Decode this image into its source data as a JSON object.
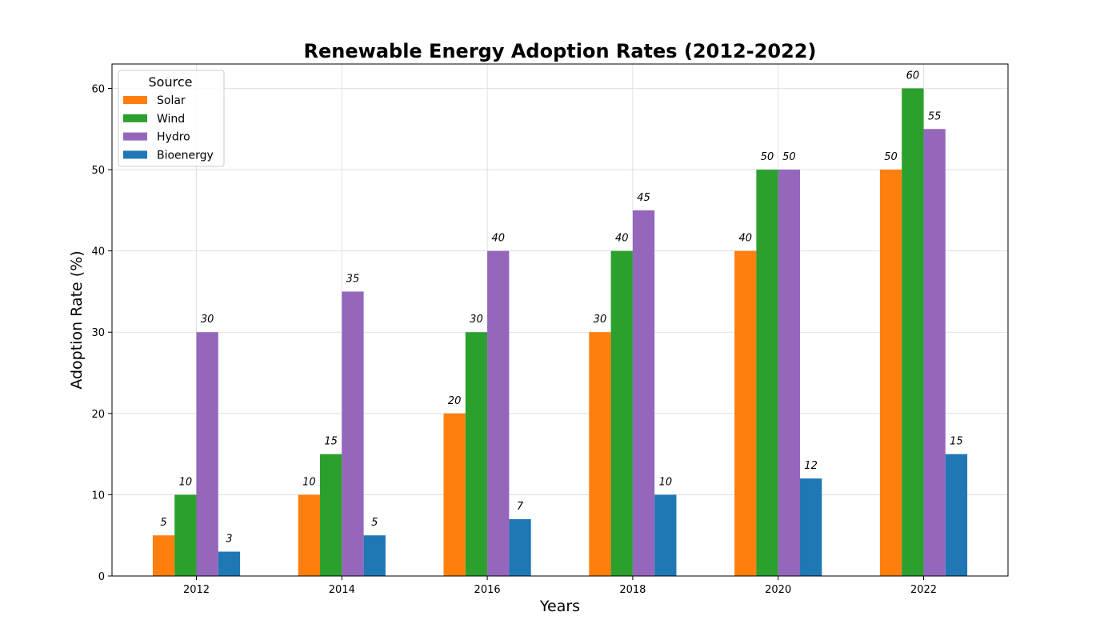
{
  "chart_data": {
    "type": "bar",
    "title": "Renewable Energy Adoption Rates (2012-2022)",
    "xlabel": "Years",
    "ylabel": "Adoption Rate (%)",
    "categories": [
      "2012",
      "2014",
      "2016",
      "2018",
      "2020",
      "2022"
    ],
    "ylim": [
      0,
      63
    ],
    "yticks": [
      0,
      10,
      20,
      30,
      40,
      50,
      60
    ],
    "grid": true,
    "legend": {
      "title": "Source",
      "placement": "top-left"
    },
    "series": [
      {
        "name": "Solar",
        "color": "#ff7f0e",
        "values": [
          5,
          10,
          20,
          30,
          40,
          50
        ]
      },
      {
        "name": "Wind",
        "color": "#2ca02c",
        "values": [
          10,
          15,
          30,
          40,
          50,
          60
        ]
      },
      {
        "name": "Hydro",
        "color": "#9467bd",
        "values": [
          30,
          35,
          40,
          45,
          50,
          55
        ]
      },
      {
        "name": "Bioenergy",
        "color": "#1f77b4",
        "values": [
          3,
          5,
          7,
          10,
          12,
          15
        ]
      }
    ]
  }
}
